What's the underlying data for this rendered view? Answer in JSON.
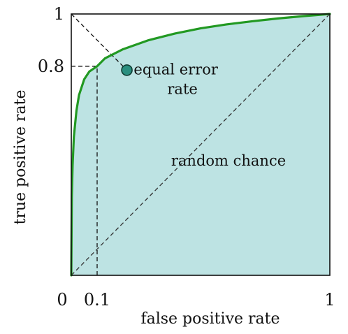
{
  "chart_data": {
    "type": "line",
    "title": "",
    "xlabel": "false positive rate",
    "ylabel": "true positive rate",
    "xlim": [
      0,
      1
    ],
    "ylim": [
      0,
      1
    ],
    "grid": false,
    "x_tick_labels": [
      {
        "value": 0,
        "label": "0"
      },
      {
        "value": 0.1,
        "label": "0.1"
      },
      {
        "value": 1,
        "label": "1"
      }
    ],
    "y_tick_labels": [
      {
        "value": 0.8,
        "label": "0.8"
      },
      {
        "value": 1,
        "label": "1"
      }
    ],
    "series": [
      {
        "x": [
          0,
          0.002,
          0.005,
          0.01,
          0.02,
          0.03,
          0.05,
          0.07,
          0.1,
          0.13,
          0.2,
          0.3,
          0.4,
          0.5,
          0.6,
          0.7,
          0.8,
          0.9,
          1.0
        ],
        "y": [
          0,
          0.3,
          0.42,
          0.53,
          0.63,
          0.69,
          0.75,
          0.78,
          0.8,
          0.83,
          0.865,
          0.9,
          0.925,
          0.945,
          0.96,
          0.972,
          0.983,
          0.992,
          1.0
        ],
        "color": "#229922",
        "fill": "#bde3e3"
      }
    ],
    "reference_lines": [
      {
        "from": [
          0,
          0
        ],
        "to": [
          1,
          1
        ],
        "style": "dashed"
      },
      {
        "from": [
          0,
          1
        ],
        "to": [
          0.215,
          0.785
        ],
        "style": "dashed"
      }
    ],
    "guide_lines": [
      {
        "from": [
          0,
          0.8
        ],
        "to": [
          0.1,
          0.8
        ],
        "style": "dashed"
      },
      {
        "from": [
          0.1,
          0
        ],
        "to": [
          0.1,
          0.8
        ],
        "style": "dashed"
      }
    ],
    "markers": [
      {
        "x": 0.215,
        "y": 0.785,
        "color": "#2a8f7f"
      }
    ],
    "annotations": [
      {
        "lines": [
          "equal error",
          "rate"
        ],
        "x": 0.22,
        "y": 0.79
      },
      {
        "lines": [
          "random chance"
        ],
        "x": 0.6,
        "y": 0.42
      }
    ]
  }
}
